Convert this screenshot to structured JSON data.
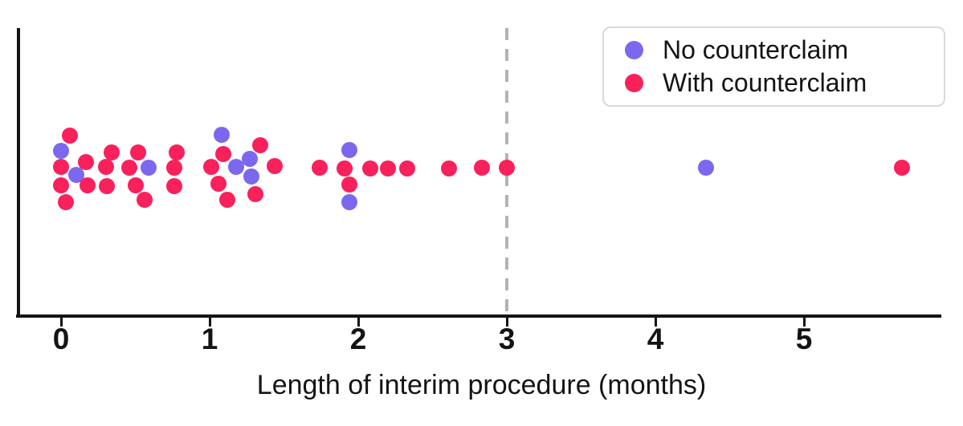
{
  "figure": {
    "legend": [
      {
        "label": "No counterclaim",
        "color": "#7B68EE"
      },
      {
        "label": "With counterclaim",
        "color": "#F8215B"
      }
    ]
  },
  "chart_data": {
    "type": "scatter",
    "subtype": "jittered-strip-plot",
    "title": "",
    "xlabel": "Length of interim procedure (months)",
    "ylabel": "",
    "xlim": [
      -0.3,
      6.0
    ],
    "x_ticks": [
      0,
      1,
      2,
      3,
      4,
      5
    ],
    "grid": false,
    "legend_position": "upper right",
    "reference_line": {
      "x": 3,
      "style": "dashed",
      "color": "#b3b3b3"
    },
    "axis_color": "#141414",
    "series": [
      {
        "name": "No counterclaim",
        "color": "#7B68EE",
        "points": [
          {
            "x": 0.0,
            "dy": -21
          },
          {
            "x": 0.1,
            "dy": 9
          },
          {
            "x": 0.59,
            "dy": 0
          },
          {
            "x": 1.08,
            "dy": -41
          },
          {
            "x": 1.18,
            "dy": -1
          },
          {
            "x": 1.27,
            "dy": -11
          },
          {
            "x": 1.28,
            "dy": 11
          },
          {
            "x": 1.94,
            "dy": -22
          },
          {
            "x": 1.94,
            "dy": 43
          },
          {
            "x": 4.34,
            "dy": 0
          }
        ]
      },
      {
        "name": "With counterclaim",
        "color": "#F8215B",
        "points": [
          {
            "x": 0.06,
            "dy": -40
          },
          {
            "x": 0.0,
            "dy": -1
          },
          {
            "x": 0.0,
            "dy": 22
          },
          {
            "x": 0.03,
            "dy": 43
          },
          {
            "x": 0.17,
            "dy": -7
          },
          {
            "x": 0.18,
            "dy": 22
          },
          {
            "x": 0.34,
            "dy": -19
          },
          {
            "x": 0.3,
            "dy": -1
          },
          {
            "x": 0.31,
            "dy": 23
          },
          {
            "x": 0.52,
            "dy": -19
          },
          {
            "x": 0.46,
            "dy": 0
          },
          {
            "x": 0.5,
            "dy": 22
          },
          {
            "x": 0.56,
            "dy": 40
          },
          {
            "x": 0.78,
            "dy": -19
          },
          {
            "x": 0.76,
            "dy": 0
          },
          {
            "x": 0.76,
            "dy": 23
          },
          {
            "x": 1.09,
            "dy": -17
          },
          {
            "x": 1.01,
            "dy": -1
          },
          {
            "x": 1.06,
            "dy": 20
          },
          {
            "x": 1.12,
            "dy": 40
          },
          {
            "x": 1.34,
            "dy": -28
          },
          {
            "x": 1.31,
            "dy": 33
          },
          {
            "x": 1.44,
            "dy": -2
          },
          {
            "x": 1.74,
            "dy": 0
          },
          {
            "x": 1.91,
            "dy": 1
          },
          {
            "x": 1.94,
            "dy": 21
          },
          {
            "x": 2.08,
            "dy": 1
          },
          {
            "x": 2.2,
            "dy": 1
          },
          {
            "x": 2.33,
            "dy": 1
          },
          {
            "x": 2.61,
            "dy": 1
          },
          {
            "x": 2.83,
            "dy": 0
          },
          {
            "x": 3.0,
            "dy": 0
          },
          {
            "x": 5.66,
            "dy": 0
          }
        ]
      }
    ]
  }
}
